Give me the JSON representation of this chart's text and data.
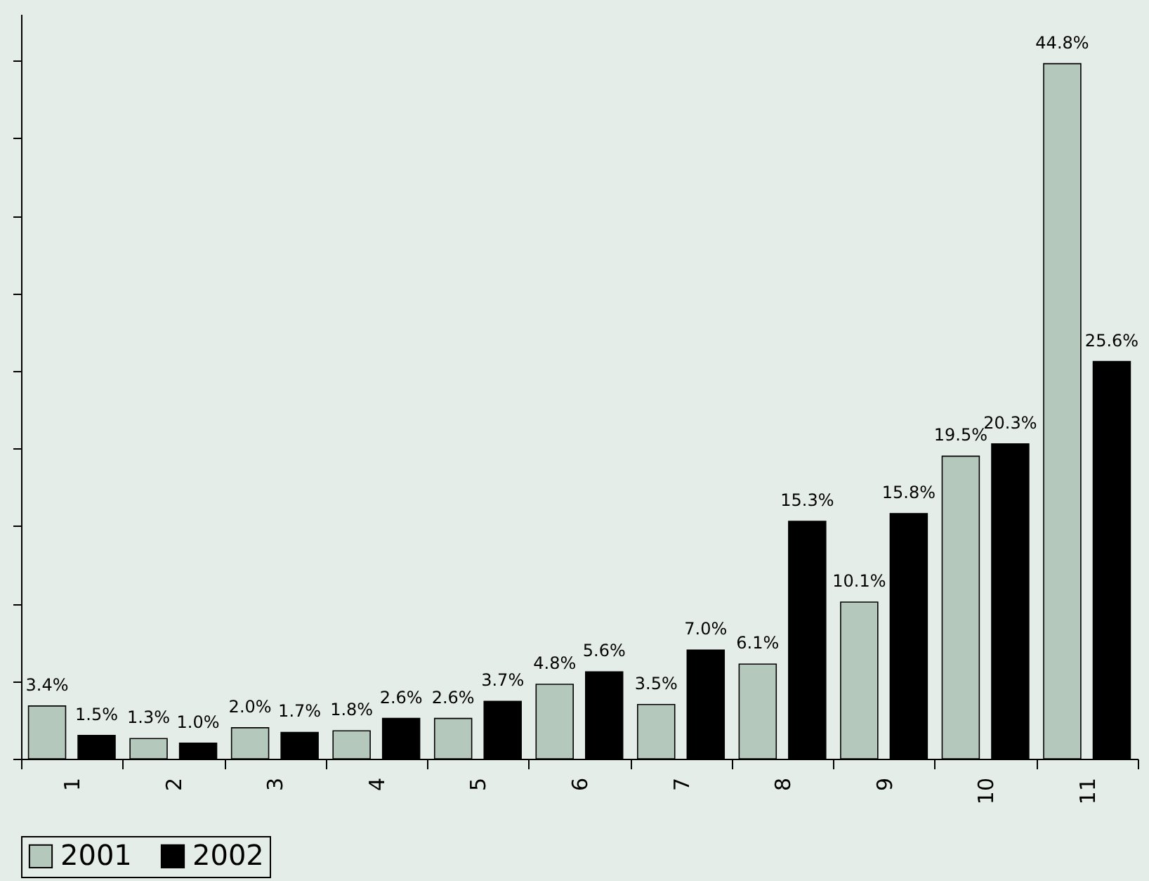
{
  "chart_data": {
    "type": "bar",
    "categories": [
      "1",
      "2",
      "3",
      "4",
      "5",
      "6",
      "7",
      "8",
      "9",
      "10",
      "11"
    ],
    "series": [
      {
        "name": "2001",
        "color": "#b4c8bb",
        "values": [
          3.4,
          1.3,
          2.0,
          1.8,
          2.6,
          4.8,
          3.5,
          6.1,
          10.1,
          19.5,
          44.8
        ],
        "value_labels": [
          "3.4%",
          "1.3%",
          "2.0%",
          "1.8%",
          "2.6%",
          "4.8%",
          "3.5%",
          "6.1%",
          "10.1%",
          "19.5%",
          "44.8%"
        ]
      },
      {
        "name": "2002",
        "color": "#000000",
        "values": [
          1.5,
          1.0,
          1.7,
          2.6,
          3.7,
          5.6,
          7.0,
          15.3,
          15.8,
          20.3,
          25.6
        ],
        "value_labels": [
          "1.5%",
          "1.0%",
          "1.7%",
          "2.6%",
          "3.7%",
          "5.6%",
          "7.0%",
          "15.3%",
          "15.8%",
          "20.3%",
          "25.6%"
        ]
      }
    ],
    "ylim": [
      0,
      48
    ],
    "yticks": [
      {
        "value": 0,
        "label": null
      },
      {
        "value": 5,
        "label": null
      },
      {
        "value": 10,
        "label": null
      },
      {
        "value": 15,
        "label": null
      },
      {
        "value": 20,
        "label": null
      },
      {
        "value": 25,
        "label": null
      },
      {
        "value": 30,
        "label": null
      },
      {
        "value": 35,
        "label": null
      },
      {
        "value": 40,
        "label": null
      },
      {
        "value": 45,
        "label": null
      }
    ],
    "tick_labels": "x",
    "legend": "bottom",
    "grid": false
  }
}
